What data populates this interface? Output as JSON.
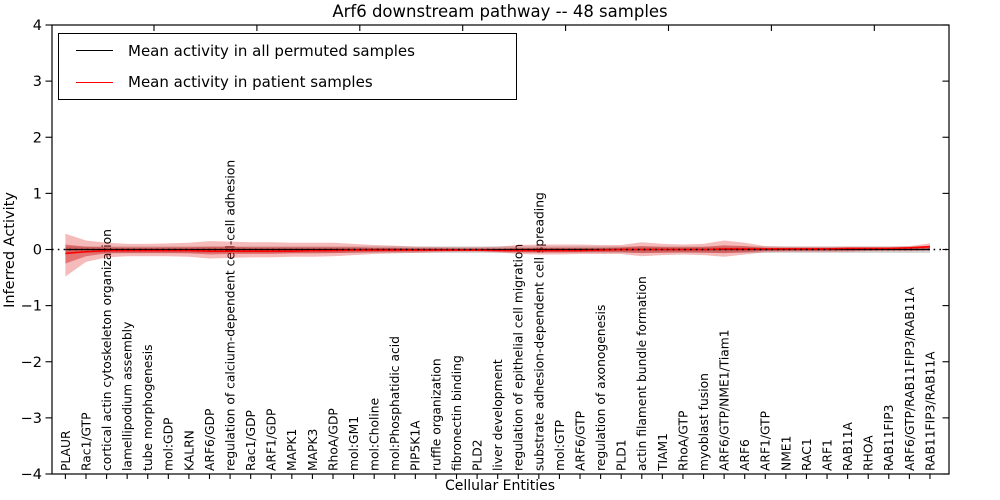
{
  "window": {
    "title": "Arf6 downstream pathway -- 48 samples"
  },
  "legend": {
    "items": [
      {
        "label": "Mean activity in all permuted samples",
        "color": "#000000"
      },
      {
        "label": "Mean activity in patient samples",
        "color": "#ff0000"
      }
    ],
    "position": "upper-left"
  },
  "chart_data": {
    "type": "line",
    "title": "Arf6 downstream pathway -- 48 samples",
    "xlabel": "Cellular Entities",
    "ylabel": "Inferred Activity",
    "ylim": [
      -4,
      4
    ],
    "yticks": [
      4,
      3,
      2,
      1,
      0,
      -1,
      -2,
      -3,
      -4
    ],
    "ytick_labels": [
      "4",
      "3",
      "2",
      "1",
      "0",
      "−1",
      "−2",
      "−3",
      "−4"
    ],
    "grid": false,
    "samples_note": "48 samples",
    "categories": [
      "PLAUR",
      "Rac1/GTP",
      "cortical actin cytoskeleton organization",
      "lamellipodium assembly",
      "tube morphogenesis",
      "mol:GDP",
      "KALRN",
      "ARF6/GDP",
      "regulation of calcium-dependent cell-cell adhesion",
      "Rac1/GDP",
      "ARF1/GDP",
      "MAPK1",
      "MAPK3",
      "RhoA/GDP",
      "mol:GM1",
      "mol:Choline",
      "mol:Phosphatidic acid",
      "PIP5K1A",
      "ruffle organization",
      "fibronectin binding",
      "PLD2",
      "liver development",
      "regulation of epithelial cell migration",
      "substrate adhesion-dependent cell spreading",
      "mol:GTP",
      "ARF6/GTP",
      "regulation of axonogenesis",
      "PLD1",
      "actin filament bundle formation",
      "TIAM1",
      "RhoA/GTP",
      "myoblast fusion",
      "ARF6/GTP/NME1/Tiam1",
      "ARF6",
      "ARF1/GTP",
      "NME1",
      "RAC1",
      "ARF1",
      "RAB11A",
      "RHOA",
      "RAB11FIP3",
      "ARF6/GTP/RAB11FIP3/RAB11A",
      "RAB11FIP3/RAB11A"
    ],
    "series": [
      {
        "name": "Mean activity in all permuted samples",
        "color": "#000000",
        "width": 1.2,
        "values": [
          0,
          0,
          0,
          0,
          0,
          0,
          0,
          0,
          0,
          0,
          0,
          0,
          0,
          0,
          0,
          0,
          0,
          0,
          0,
          0,
          0,
          0,
          0,
          0,
          0,
          0,
          0,
          0,
          0,
          0,
          0,
          0,
          0,
          0,
          0,
          0,
          0,
          0,
          0,
          0,
          0,
          0,
          0
        ]
      },
      {
        "name": "Mean activity in patient samples",
        "color": "#ff0000",
        "width": 1.6,
        "values": [
          -0.07,
          -0.04,
          -0.02,
          -0.02,
          -0.02,
          -0.02,
          -0.02,
          -0.03,
          -0.03,
          -0.03,
          -0.03,
          -0.03,
          -0.02,
          -0.02,
          -0.01,
          -0.01,
          -0.01,
          -0.01,
          -0.01,
          -0.01,
          -0.01,
          -0.02,
          -0.02,
          -0.02,
          -0.02,
          -0.02,
          -0.01,
          0.0,
          0.0,
          0.0,
          0.0,
          0.0,
          0.01,
          0.01,
          0.01,
          0.01,
          0.01,
          0.01,
          0.02,
          0.02,
          0.02,
          0.03,
          0.05
        ]
      }
    ],
    "bands": [
      {
        "name": "permuted-samples-spread",
        "color": "rgba(110,110,110,0.30)",
        "upper": 0.055,
        "lower": -0.06
      },
      {
        "name": "patient-samples-outer-band",
        "color": "rgba(222,25,25,0.30)",
        "upper": [
          0.28,
          0.16,
          0.12,
          0.1,
          0.1,
          0.11,
          0.12,
          0.15,
          0.14,
          0.13,
          0.13,
          0.12,
          0.12,
          0.12,
          0.1,
          0.08,
          0.07,
          0.05,
          0.045,
          0.04,
          0.04,
          0.05,
          0.08,
          0.09,
          0.09,
          0.09,
          0.08,
          0.08,
          0.13,
          0.1,
          0.09,
          0.1,
          0.16,
          0.12,
          0.06,
          0.05,
          0.05,
          0.05,
          0.05,
          0.05,
          0.05,
          0.06,
          0.11
        ],
        "lower": [
          -0.48,
          -0.22,
          -0.14,
          -0.12,
          -0.12,
          -0.12,
          -0.13,
          -0.16,
          -0.15,
          -0.14,
          -0.14,
          -0.13,
          -0.13,
          -0.12,
          -0.1,
          -0.08,
          -0.07,
          -0.06,
          -0.05,
          -0.04,
          -0.04,
          -0.05,
          -0.08,
          -0.09,
          -0.09,
          -0.08,
          -0.08,
          -0.08,
          -0.12,
          -0.1,
          -0.09,
          -0.1,
          -0.13,
          -0.09,
          -0.05,
          -0.04,
          -0.04,
          -0.04,
          -0.04,
          -0.03,
          -0.03,
          -0.03,
          -0.02
        ]
      },
      {
        "name": "patient-samples-inner-band",
        "color": "rgba(205,20,20,0.42)",
        "upper": [
          0.09,
          0.05,
          0.04,
          0.035,
          0.035,
          0.04,
          0.04,
          0.05,
          0.05,
          0.04,
          0.04,
          0.04,
          0.04,
          0.04,
          0.04,
          0.03,
          0.03,
          0.02,
          0.02,
          0.015,
          0.015,
          0.015,
          0.025,
          0.03,
          0.03,
          0.03,
          0.03,
          0.035,
          0.06,
          0.045,
          0.04,
          0.045,
          0.075,
          0.06,
          0.03,
          0.03,
          0.03,
          0.03,
          0.03,
          0.03,
          0.03,
          0.04,
          0.07
        ],
        "lower": [
          -0.25,
          -0.12,
          -0.07,
          -0.065,
          -0.065,
          -0.065,
          -0.07,
          -0.09,
          -0.08,
          -0.08,
          -0.08,
          -0.07,
          -0.07,
          -0.065,
          -0.055,
          -0.045,
          -0.04,
          -0.035,
          -0.03,
          -0.025,
          -0.025,
          -0.03,
          -0.045,
          -0.05,
          -0.05,
          -0.045,
          -0.045,
          -0.045,
          -0.065,
          -0.055,
          -0.05,
          -0.055,
          -0.065,
          -0.05,
          -0.025,
          -0.02,
          -0.02,
          -0.02,
          -0.02,
          -0.015,
          -0.01,
          -0.01,
          0.0
        ]
      }
    ],
    "zero_line": {
      "style": "dotted",
      "color": "#000000",
      "y": 0
    }
  }
}
